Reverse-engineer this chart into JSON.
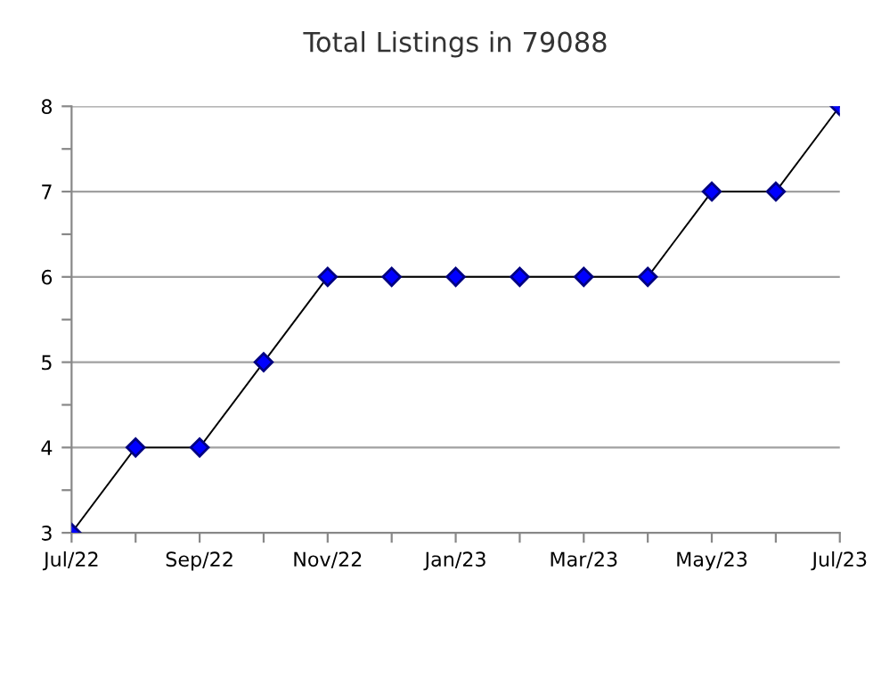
{
  "chart_data": {
    "type": "line",
    "title": "Total Listings in 79088",
    "categories": [
      "Jul/22",
      null,
      "Sep/22",
      null,
      "Nov/22",
      null,
      "Jan/23",
      null,
      "Mar/23",
      null,
      "May/23",
      null,
      "Jul/23"
    ],
    "series": [
      {
        "color": "#0000ff",
        "values": [
          3,
          4,
          4,
          5,
          6,
          6,
          6,
          6,
          6,
          6,
          7,
          7,
          8
        ]
      }
    ],
    "ylim": [
      3,
      8
    ],
    "yticks": [
      3,
      {
        "value": 3.5,
        "label": null
      },
      4,
      {
        "value": 4.5,
        "label": null
      },
      5,
      {
        "value": 5.5,
        "label": null
      },
      6,
      {
        "value": 6.5,
        "label": null
      },
      7,
      {
        "value": 7.5,
        "label": null
      },
      8
    ],
    "grid": "y",
    "marker": "diamond",
    "line_style": "solid"
  }
}
